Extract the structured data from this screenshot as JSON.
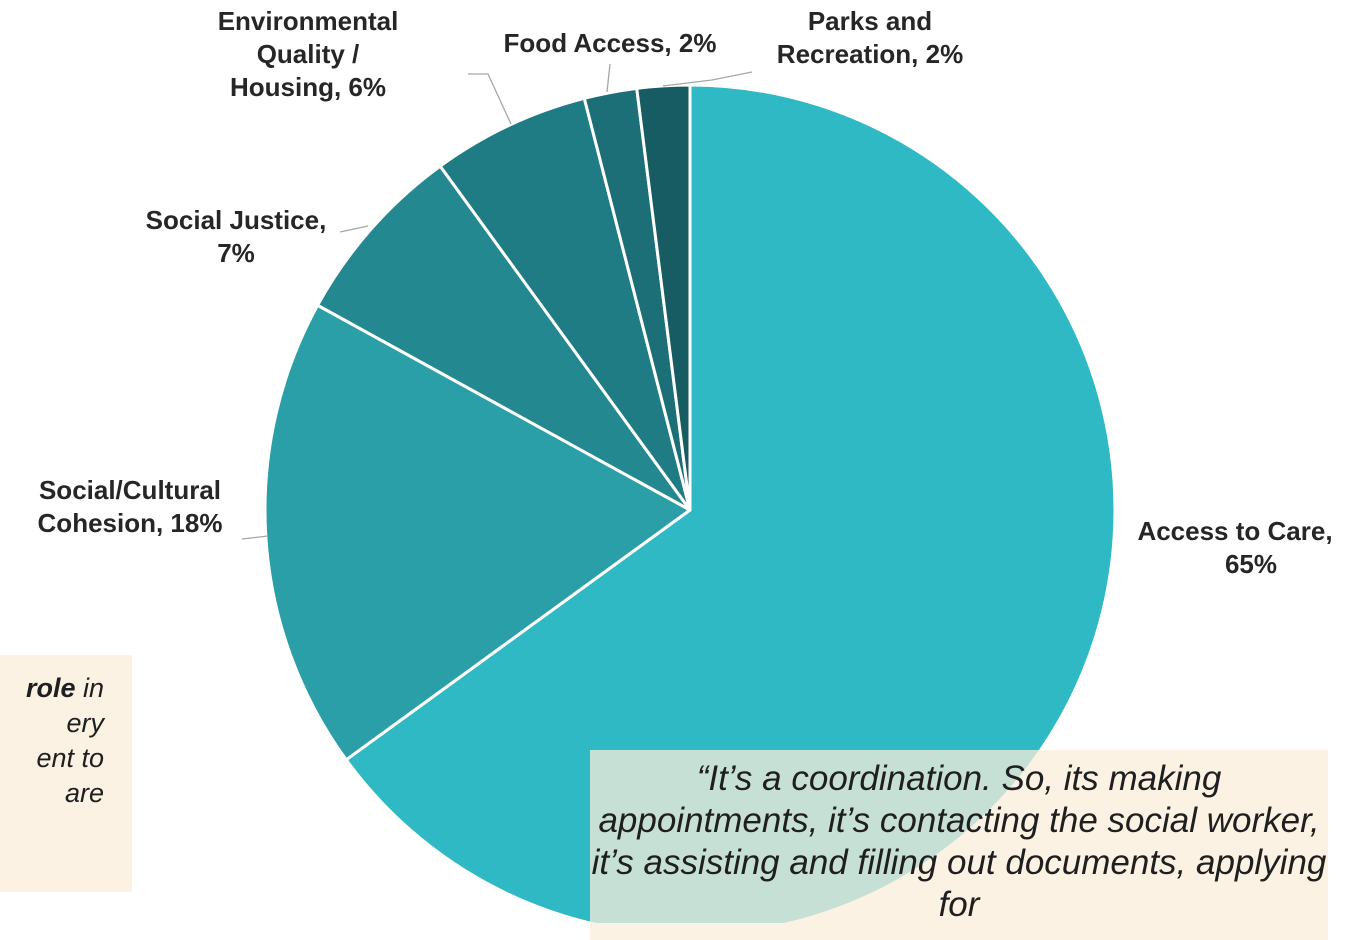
{
  "chart_data": {
    "type": "pie",
    "title": "",
    "slices": [
      {
        "label_lines": [
          "Access to Care,",
          "65%"
        ],
        "category": "Access to Care",
        "value": 65,
        "color": "#2FB9C4"
      },
      {
        "label_lines": [
          "Social/Cultural",
          "Cohesion, 18%"
        ],
        "category": "Social/Cultural Cohesion",
        "value": 18,
        "color": "#2A9FA8"
      },
      {
        "label_lines": [
          "Social Justice,",
          "7%"
        ],
        "category": "Social Justice",
        "value": 7,
        "color": "#238890"
      },
      {
        "label_lines": [
          "Environmental",
          "Quality /",
          "Housing, 6%"
        ],
        "category": "Environmental Quality / Housing",
        "value": 6,
        "color": "#1F7B84"
      },
      {
        "label_lines": [
          "Food Access, 2%"
        ],
        "category": "Food Access",
        "value": 2,
        "color": "#1C6E77"
      },
      {
        "label_lines": [
          "Parks and",
          "Recreation, 2%"
        ],
        "category": "Parks and Recreation",
        "value": 2,
        "color": "#175B63"
      }
    ]
  },
  "quotes": {
    "right": "“It’s a coordination. So, its making appointments, it’s contacting the social worker, it’s assisting and filling out documents, applying for",
    "left_lines": [
      {
        "bold": "role",
        "rest": " in"
      },
      {
        "bold": "",
        "rest": "ery"
      },
      {
        "bold": "",
        "rest": "ent to"
      },
      {
        "bold": "",
        "rest": "are"
      }
    ]
  }
}
